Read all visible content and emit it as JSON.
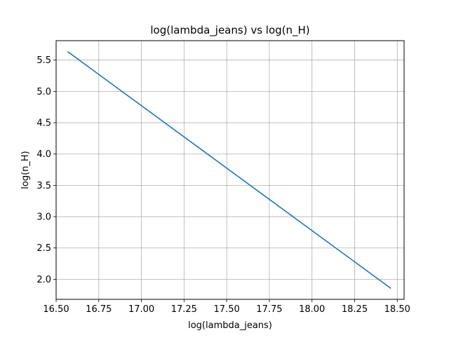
{
  "chart_data": {
    "type": "line",
    "title": "log(lambda_jeans) vs log(n_H)",
    "xlabel": "log(lambda_jeans)",
    "ylabel": "log(n_H)",
    "xlim": [
      16.5,
      18.54
    ],
    "ylim": [
      1.68,
      5.81
    ],
    "xticks": [
      16.5,
      16.75,
      17.0,
      17.25,
      17.5,
      17.75,
      18.0,
      18.25,
      18.5
    ],
    "xtick_labels": [
      "16.50",
      "16.75",
      "17.00",
      "17.25",
      "17.50",
      "17.75",
      "18.00",
      "18.25",
      "18.50"
    ],
    "yticks": [
      2.0,
      2.5,
      3.0,
      3.5,
      4.0,
      4.5,
      5.0,
      5.5
    ],
    "ytick_labels": [
      "2.0",
      "2.5",
      "3.0",
      "3.5",
      "4.0",
      "4.5",
      "5.0",
      "5.5"
    ],
    "grid": true,
    "series": [
      {
        "color": "#1f77b4",
        "x": [
          16.57,
          18.46
        ],
        "y": [
          5.63,
          1.86
        ]
      }
    ]
  }
}
